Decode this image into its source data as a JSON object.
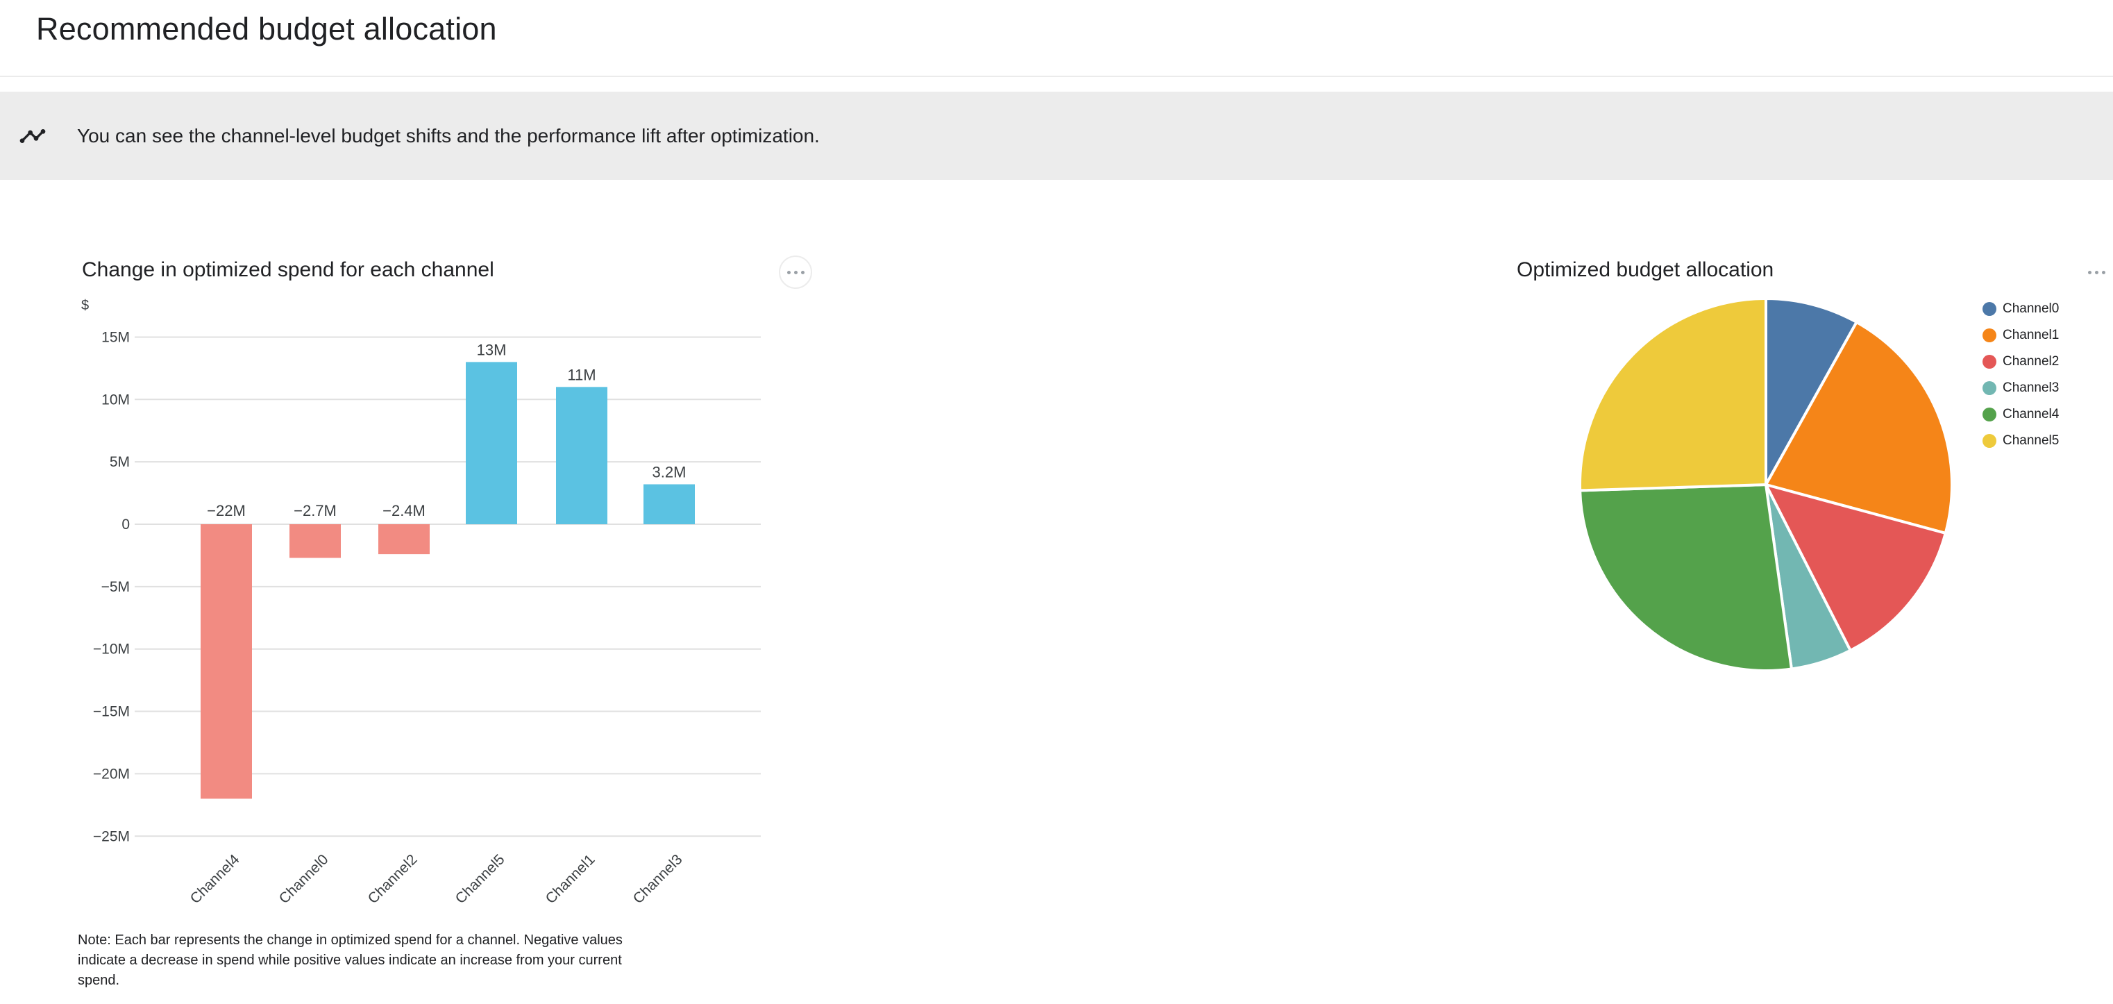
{
  "page": {
    "title": "Recommended budget allocation",
    "banner": {
      "icon": "timeline-insights-icon",
      "text": "You can see the channel-level budget shifts and the performance lift after optimization."
    }
  },
  "bar_card": {
    "title": "Change in optimized spend for each channel",
    "note": "Note: Each bar represents the change in optimized spend for a channel. Negative values indicate a decrease in spend while positive values indicate an increase from your current spend.",
    "menu_icon": "more-options-icon"
  },
  "pie_card": {
    "title": "Optimized budget allocation",
    "menu_icon": "more-options-icon",
    "legend_position": "right"
  },
  "chart_data": [
    {
      "type": "bar",
      "title": "Change in optimized spend for each channel",
      "categories": [
        "Channel4",
        "Channel0",
        "Channel2",
        "Channel5",
        "Channel1",
        "Channel3"
      ],
      "values": [
        -22,
        -2.7,
        -2.4,
        13,
        11,
        3.2
      ],
      "value_labels": [
        "−22M",
        "−2.7M",
        "−2.4M",
        "13M",
        "11M",
        "3.2M"
      ],
      "unit": "M",
      "ylabel": "$",
      "xlabel": "",
      "ylim": [
        -25,
        15
      ],
      "yticks": [
        15,
        10,
        5,
        0,
        -5,
        -10,
        -15,
        -20,
        -25
      ],
      "ytick_labels": [
        "15M",
        "10M",
        "5M",
        "0",
        "−5M",
        "−10M",
        "−15M",
        "−20M",
        "−25M"
      ],
      "grid": true,
      "colors": {
        "positive": "#5BC2E2",
        "negative": "#F28B82"
      }
    },
    {
      "type": "pie",
      "title": "Optimized budget allocation",
      "labels": [
        "Channel0",
        "Channel1",
        "Channel2",
        "Channel3",
        "Channel4",
        "Channel5"
      ],
      "values": [
        8.1,
        21.1,
        13.3,
        5.3,
        26.7,
        25.5
      ],
      "colors": [
        "#4C78A8",
        "#F58518",
        "#E45756",
        "#72B7B2",
        "#54A24B",
        "#EECA3B"
      ],
      "start_angle_deg": 0,
      "legend_position": "right",
      "slice_gap_color": "#ffffff"
    }
  ]
}
